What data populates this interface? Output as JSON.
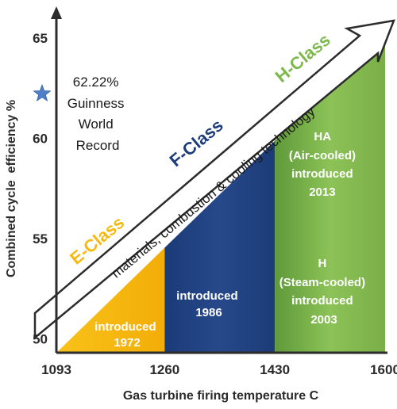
{
  "chart_data": {
    "type": "area",
    "xlabel": "Gas turbine firing temperature C",
    "ylabel": "Combined cycle  efficiency %",
    "x_ticks": [
      "1093",
      "1260",
      "1430",
      "1600"
    ],
    "y_ticks": [
      "50",
      "55",
      "60",
      "65"
    ],
    "xlim": [
      1093,
      1600
    ],
    "ylim": [
      49.3,
      66.5
    ],
    "trend_line": {
      "x": [
        1093,
        1600
      ],
      "y": [
        49.3,
        65.2
      ]
    },
    "bands": [
      {
        "name": "E-Class",
        "x_start": 1093,
        "x_end": 1260,
        "color": "#f6b90e",
        "text": [
          "introduced",
          "1972"
        ]
      },
      {
        "name": "F-Class",
        "x_start": 1260,
        "x_end": 1430,
        "color": "#1f3d7a",
        "text": [
          "introduced",
          "1986"
        ]
      },
      {
        "name": "H-Class",
        "x_start": 1430,
        "x_end": 1600,
        "color": "#7db84a",
        "text": [
          "HA",
          "(Air-cooled)",
          "introduced",
          "2013",
          "H",
          "(Steam-cooled)",
          "introduced",
          "2003"
        ]
      }
    ],
    "class_labels": [
      {
        "text": "E-Class",
        "color": "#f6b90e"
      },
      {
        "text": "F-Class",
        "color": "#1f3d7a"
      },
      {
        "text": "H-Class",
        "color": "#7db84a"
      }
    ],
    "arrow_label": "materials, combustion & cooling technology",
    "record": {
      "value": 62.22,
      "lines": [
        "62.22%",
        "Guinness",
        "World",
        "Record"
      ],
      "marker_color": "#4f7fc8"
    }
  }
}
